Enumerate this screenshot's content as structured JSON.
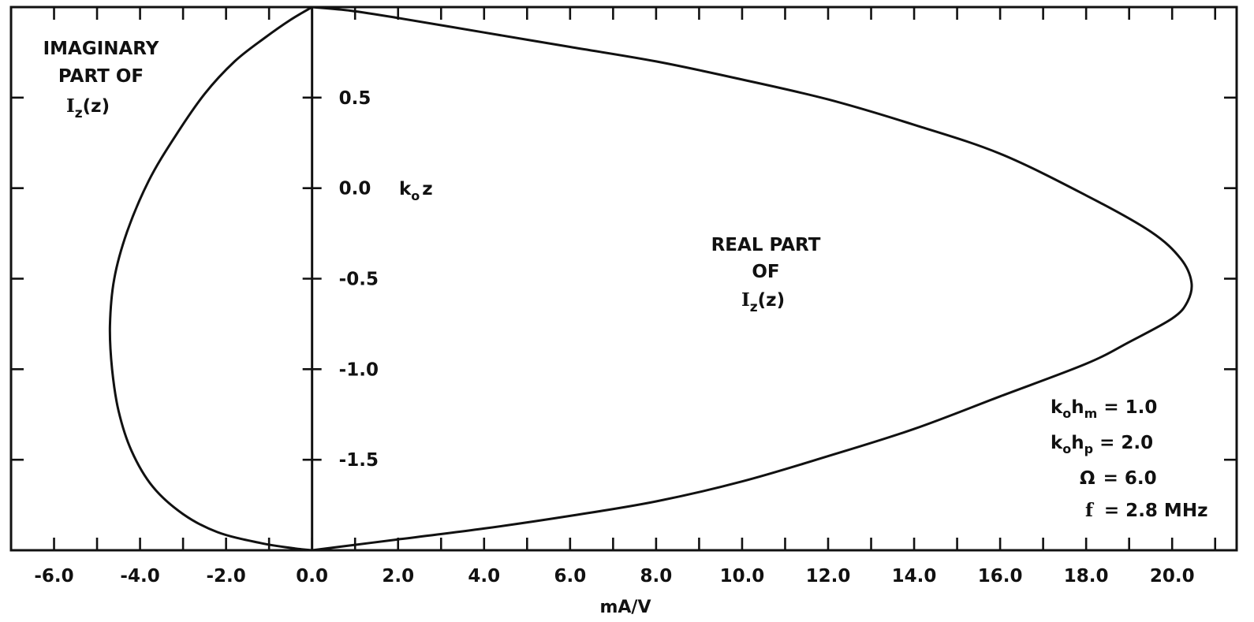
{
  "chart_data": {
    "type": "line",
    "title": "",
    "xlabel": "mA/V",
    "ylabel": "k₀z",
    "xlim": [
      -7.0,
      21.5
    ],
    "ylim": [
      -2.0,
      1.0
    ],
    "grid": false,
    "x_ticks": [
      {
        "value": -6.0,
        "label": "-6.0"
      },
      {
        "value": -4.0,
        "label": "-4.0"
      },
      {
        "value": -2.0,
        "label": "-2.0"
      },
      {
        "value": 0.0,
        "label": "0.0"
      },
      {
        "value": 2.0,
        "label": "2.0"
      },
      {
        "value": 4.0,
        "label": "4.0"
      },
      {
        "value": 6.0,
        "label": "6.0"
      },
      {
        "value": 8.0,
        "label": "8.0"
      },
      {
        "value": 10.0,
        "label": "10.0"
      },
      {
        "value": 12.0,
        "label": "12.0"
      },
      {
        "value": 14.0,
        "label": "14.0"
      },
      {
        "value": 16.0,
        "label": "16.0"
      },
      {
        "value": 18.0,
        "label": "18.0"
      },
      {
        "value": 20.0,
        "label": "20.0"
      }
    ],
    "y_ticks": [
      {
        "value": 0.5,
        "label": "0.5"
      },
      {
        "value": 0.0,
        "label": "0.0"
      },
      {
        "value": -0.5,
        "label": "-0.5"
      },
      {
        "value": -1.0,
        "label": "-1.0"
      },
      {
        "value": -1.5,
        "label": "-1.5"
      }
    ],
    "series": [
      {
        "x": [
          0.0,
          0.9,
          2.0,
          4.0,
          6.0,
          8.0,
          10.0,
          12.0,
          14.0,
          16.0,
          18.0,
          19.5,
          20.2,
          20.45,
          20.35,
          20.0,
          19.0,
          18.0,
          16.0,
          14.0,
          12.0,
          10.0,
          8.0,
          6.0,
          4.0,
          2.0,
          1.0,
          0.0
        ],
        "y": [
          1.0,
          0.98,
          0.94,
          0.86,
          0.78,
          0.7,
          0.6,
          0.49,
          0.35,
          0.19,
          -0.04,
          -0.24,
          -0.39,
          -0.52,
          -0.63,
          -0.72,
          -0.85,
          -0.97,
          -1.15,
          -1.33,
          -1.48,
          -1.62,
          -1.73,
          -1.81,
          -1.88,
          -1.94,
          -1.97,
          -2.0
        ]
      },
      {
        "x": [
          0.0,
          -0.5,
          -1.1,
          -1.8,
          -2.5,
          -3.2,
          -3.8,
          -4.3,
          -4.6,
          -4.7,
          -4.65,
          -4.5,
          -4.2,
          -3.7,
          -3.0,
          -2.2,
          -1.2,
          -0.4,
          0.0
        ],
        "y": [
          1.0,
          0.93,
          0.83,
          0.7,
          0.52,
          0.28,
          0.04,
          -0.24,
          -0.5,
          -0.76,
          -1.0,
          -1.23,
          -1.45,
          -1.65,
          -1.8,
          -1.9,
          -1.96,
          -1.99,
          -2.0
        ]
      }
    ],
    "annotations": {
      "imaginary": [
        "IMAGINARY",
        "PART  OF"
      ],
      "real": [
        "REAL  PART",
        "OF"
      ],
      "iz_symbol": "I",
      "iz_sub": "z",
      "iz_arg": "(z)",
      "koz_k": "k",
      "koz_o": "o",
      "koz_z": "z",
      "params": [
        {
          "lhs": "k",
          "lhs_sub": "o",
          "var": "h",
          "var_sub": "m",
          "eq": "= 1.0"
        },
        {
          "lhs": "k",
          "lhs_sub": "o",
          "var": "h",
          "var_sub": "p",
          "eq": "= 2.0"
        },
        {
          "lhs": "Ω",
          "lhs_sub": "",
          "var": "",
          "var_sub": "",
          "eq": "= 6.0"
        },
        {
          "lhs": "f",
          "lhs_sub": "",
          "var": "",
          "var_sub": "",
          "eq": "= 2.8  MHz"
        }
      ]
    }
  }
}
